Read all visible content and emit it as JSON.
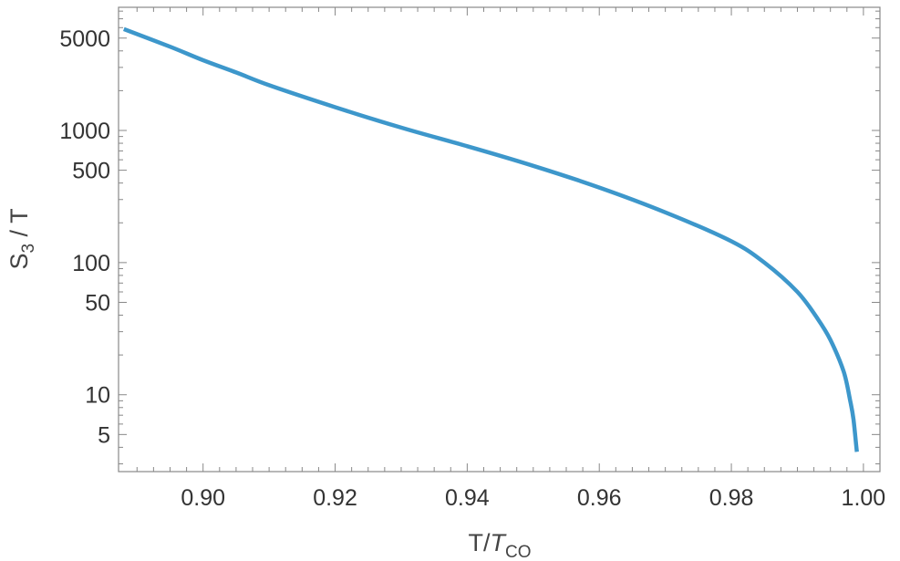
{
  "chart_data": {
    "type": "line",
    "xlabel": {
      "main": "T/",
      "italic": "T",
      "sub": "CO"
    },
    "ylabel": {
      "main": "S",
      "sub": "3",
      "rest": " / T"
    },
    "y_scale": "log",
    "xlim": [
      0.8872,
      1.0025
    ],
    "ylim": [
      2.62,
      8550
    ],
    "x_ticks": [
      "0.90",
      "0.92",
      "0.94",
      "0.96",
      "0.98",
      "1.00"
    ],
    "y_ticks": [
      "5000",
      "1000",
      "500",
      "100",
      "50",
      "10",
      "5"
    ],
    "grid": false,
    "colors": {
      "line": "#3d97cb",
      "frame": "#888888",
      "text": "#333333"
    },
    "series": [
      {
        "x": [
          0.888,
          0.895,
          0.9,
          0.905,
          0.91,
          0.92,
          0.93,
          0.94,
          0.95,
          0.96,
          0.97,
          0.98,
          0.985,
          0.99,
          0.993,
          0.995,
          0.997,
          0.998,
          0.9985,
          0.999
        ],
        "y": [
          5850,
          4300,
          3400,
          2750,
          2200,
          1500,
          1050,
          760,
          540,
          370,
          240,
          145,
          100,
          60,
          38,
          26,
          15,
          9,
          6.5,
          3.7
        ]
      }
    ]
  }
}
